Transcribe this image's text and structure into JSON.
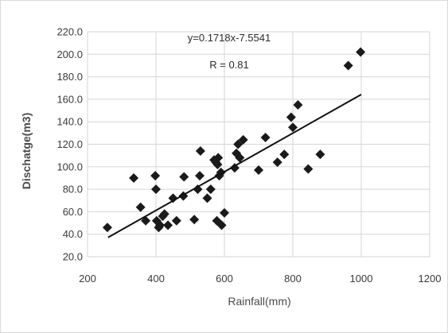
{
  "chart_data": {
    "type": "scatter",
    "xlabel": "Rainfall(mm)",
    "ylabel": "Dischatge(m3)",
    "xlim": [
      200,
      1200
    ],
    "ylim": [
      20,
      220
    ],
    "xticks": [
      200,
      400,
      600,
      800,
      1000,
      1200
    ],
    "yticks": [
      20,
      40,
      60,
      80,
      100,
      120,
      140,
      160,
      180,
      200,
      220
    ],
    "xtick_labels": [
      "200",
      "400",
      "600",
      "800",
      "1000",
      "1200"
    ],
    "ytick_labels": [
      "20.0",
      "40.0",
      "60.0",
      "80.0",
      "100.0",
      "120.0",
      "140.0",
      "160.0",
      "180.0",
      "200.0",
      "220.0"
    ],
    "grid": true,
    "legend": "none",
    "marker": "diamond",
    "marker_color": "#1a1a1a",
    "trendline": {
      "slope": 0.1718,
      "intercept": -7.5541,
      "x_range": [
        260,
        1000
      ]
    },
    "annotations": [
      "y=0.1718x-7.5541",
      "R = 0.81"
    ],
    "x": [
      258,
      335,
      355,
      370,
      398,
      400,
      402,
      408,
      412,
      420,
      425,
      435,
      450,
      460,
      480,
      482,
      512,
      522,
      528,
      530,
      550,
      560,
      570,
      575,
      578,
      580,
      582,
      585,
      590,
      592,
      600,
      630,
      635,
      640,
      645,
      655,
      700,
      720,
      755,
      775,
      795,
      800,
      815,
      845,
      880,
      962,
      998
    ],
    "y": [
      46,
      90,
      64,
      52,
      92,
      80,
      52,
      46,
      48,
      56,
      58,
      48,
      72,
      52,
      74,
      91,
      53,
      80,
      92,
      114,
      72,
      80,
      106,
      104,
      52,
      102,
      108,
      92,
      95,
      48,
      59,
      99,
      112,
      120,
      108,
      124,
      97,
      126,
      104,
      111,
      144,
      135,
      155,
      98,
      111,
      190,
      202
    ]
  }
}
